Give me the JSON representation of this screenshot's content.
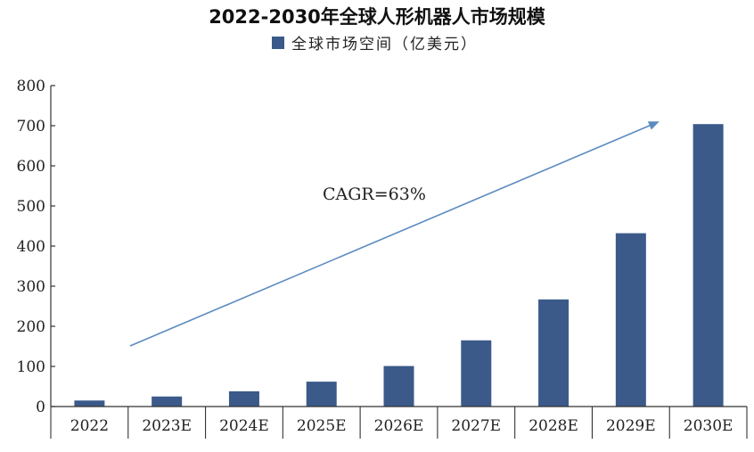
{
  "chart_data": {
    "type": "bar",
    "title": "2022-2030年全球人形机器人市场规模",
    "categories": [
      "2022",
      "2023E",
      "2024E",
      "2025E",
      "2026E",
      "2027E",
      "2028E",
      "2029E",
      "2030E"
    ],
    "series": [
      {
        "name": "全球市场空间（亿美元）",
        "color": "#3b5a8a",
        "values": [
          15,
          25,
          38,
          62,
          101,
          165,
          267,
          432,
          704
        ]
      }
    ],
    "ylim": [
      0,
      800
    ],
    "yticks": [
      0,
      100,
      200,
      300,
      400,
      500,
      600,
      700,
      800
    ],
    "grid": false,
    "legend": "top-center",
    "annotation": {
      "text": "CAGR=63%",
      "arrow_color": "#5b8bc0"
    }
  }
}
